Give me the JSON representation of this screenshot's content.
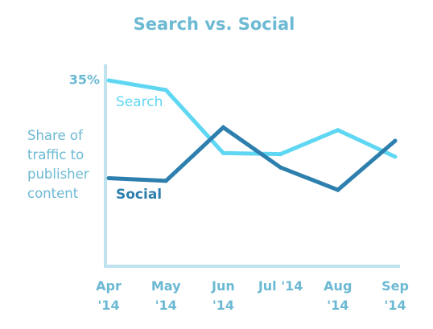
{
  "chart_data": {
    "type": "line",
    "title": "Search vs. Social",
    "xlabel": "",
    "ylabel": [
      "Share of",
      "traffic to",
      "publisher",
      "content"
    ],
    "categories": [
      [
        "Apr",
        "'14"
      ],
      [
        "May",
        "'14"
      ],
      [
        "Jun",
        "'14"
      ],
      [
        "Jul '14",
        ""
      ],
      [
        "Aug",
        "'14"
      ],
      [
        "Sep",
        "'14"
      ]
    ],
    "yticks": [
      {
        "value": 35,
        "label": "35%"
      }
    ],
    "ylim": [
      0,
      36
    ],
    "grid": false,
    "legend": "inline-labels",
    "series": [
      {
        "name": "Search",
        "color": "#5fd7f3",
        "values": [
          34.8,
          33.0,
          21.2,
          21.0,
          25.5,
          20.5
        ]
      },
      {
        "name": "Social",
        "color": "#2d7fae",
        "values": [
          16.5,
          16.0,
          26.0,
          18.5,
          14.3,
          23.5
        ]
      }
    ]
  },
  "colors": {
    "title": "#6cb9d3",
    "axis": "#bfe3ef",
    "labels": "#6cb9d3"
  }
}
